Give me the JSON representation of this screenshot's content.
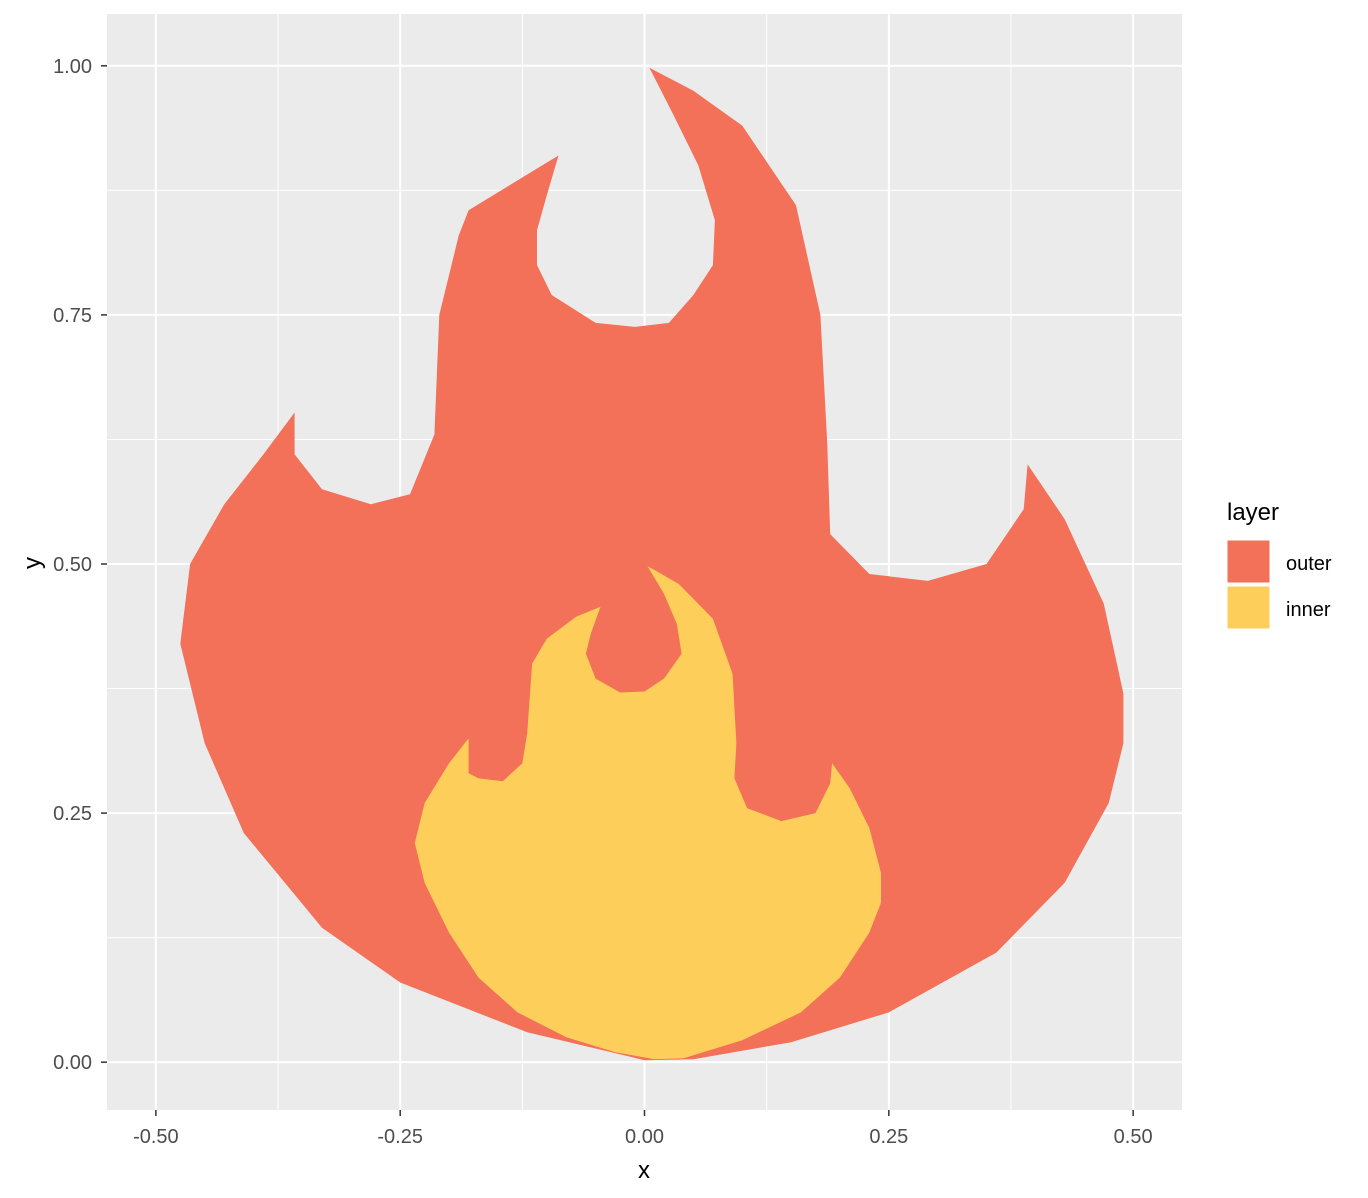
{
  "chart_data": {
    "type": "area",
    "xlabel": "x",
    "ylabel": "y",
    "xlim": [
      -0.55,
      0.55
    ],
    "ylim": [
      -0.048,
      1.052
    ],
    "x_ticks": [
      "-0.50",
      "-0.25",
      "0.00",
      "0.25",
      "0.50"
    ],
    "y_ticks": [
      "0.00",
      "0.25",
      "0.50",
      "0.75",
      "1.00"
    ],
    "grid": true,
    "legend": {
      "title": "layer",
      "placement": "right",
      "entries": [
        "outer",
        "inner"
      ]
    },
    "series": [
      {
        "name": "outer",
        "color": "#F37059",
        "points": [
          [
            0.005,
            0.998
          ],
          [
            0.05,
            0.975
          ],
          [
            0.1,
            0.94
          ],
          [
            0.155,
            0.86
          ],
          [
            0.18,
            0.75
          ],
          [
            0.187,
            0.62
          ],
          [
            0.19,
            0.53
          ],
          [
            0.23,
            0.49
          ],
          [
            0.29,
            0.483
          ],
          [
            0.35,
            0.5
          ],
          [
            0.388,
            0.555
          ],
          [
            0.392,
            0.6
          ],
          [
            0.43,
            0.545
          ],
          [
            0.47,
            0.46
          ],
          [
            0.49,
            0.37
          ],
          [
            0.49,
            0.32
          ],
          [
            0.475,
            0.26
          ],
          [
            0.43,
            0.18
          ],
          [
            0.36,
            0.11
          ],
          [
            0.25,
            0.05
          ],
          [
            0.15,
            0.02
          ],
          [
            0.05,
            0.003
          ],
          [
            0.0,
            0.002
          ],
          [
            -0.12,
            0.03
          ],
          [
            -0.25,
            0.08
          ],
          [
            -0.33,
            0.135
          ],
          [
            -0.41,
            0.23
          ],
          [
            -0.45,
            0.32
          ],
          [
            -0.475,
            0.42
          ],
          [
            -0.465,
            0.5
          ],
          [
            -0.43,
            0.56
          ],
          [
            -0.39,
            0.61
          ],
          [
            -0.358,
            0.652
          ],
          [
            -0.358,
            0.61
          ],
          [
            -0.33,
            0.575
          ],
          [
            -0.28,
            0.56
          ],
          [
            -0.24,
            0.57
          ],
          [
            -0.215,
            0.63
          ],
          [
            -0.21,
            0.75
          ],
          [
            -0.19,
            0.83
          ],
          [
            -0.18,
            0.855
          ],
          [
            -0.13,
            0.885
          ],
          [
            -0.088,
            0.91
          ],
          [
            -0.1,
            0.87
          ],
          [
            -0.11,
            0.835
          ],
          [
            -0.11,
            0.8
          ],
          [
            -0.095,
            0.77
          ],
          [
            -0.05,
            0.742
          ],
          [
            -0.01,
            0.738
          ],
          [
            0.025,
            0.742
          ],
          [
            0.05,
            0.77
          ],
          [
            0.07,
            0.8
          ],
          [
            0.072,
            0.845
          ],
          [
            0.055,
            0.9
          ],
          [
            0.03,
            0.95
          ]
        ]
      },
      {
        "name": "inner",
        "color": "#FECE5B",
        "points": [
          [
            0.003,
            0.498
          ],
          [
            0.035,
            0.48
          ],
          [
            0.07,
            0.445
          ],
          [
            0.09,
            0.39
          ],
          [
            0.094,
            0.32
          ],
          [
            0.092,
            0.285
          ],
          [
            0.105,
            0.255
          ],
          [
            0.14,
            0.242
          ],
          [
            0.175,
            0.25
          ],
          [
            0.19,
            0.28
          ],
          [
            0.192,
            0.3
          ],
          [
            0.21,
            0.275
          ],
          [
            0.23,
            0.235
          ],
          [
            0.242,
            0.19
          ],
          [
            0.242,
            0.16
          ],
          [
            0.23,
            0.13
          ],
          [
            0.2,
            0.085
          ],
          [
            0.16,
            0.05
          ],
          [
            0.1,
            0.022
          ],
          [
            0.04,
            0.004
          ],
          [
            0.01,
            0.003
          ],
          [
            -0.03,
            0.01
          ],
          [
            -0.08,
            0.025
          ],
          [
            -0.13,
            0.05
          ],
          [
            -0.17,
            0.085
          ],
          [
            -0.2,
            0.13
          ],
          [
            -0.225,
            0.18
          ],
          [
            -0.235,
            0.22
          ],
          [
            -0.225,
            0.26
          ],
          [
            -0.2,
            0.3
          ],
          [
            -0.18,
            0.325
          ],
          [
            -0.18,
            0.29
          ],
          [
            -0.17,
            0.285
          ],
          [
            -0.145,
            0.282
          ],
          [
            -0.125,
            0.3
          ],
          [
            -0.12,
            0.33
          ],
          [
            -0.115,
            0.4
          ],
          [
            -0.1,
            0.425
          ],
          [
            -0.07,
            0.447
          ],
          [
            -0.045,
            0.457
          ],
          [
            -0.055,
            0.43
          ],
          [
            -0.06,
            0.41
          ],
          [
            -0.05,
            0.385
          ],
          [
            -0.025,
            0.371
          ],
          [
            0.0,
            0.372
          ],
          [
            0.02,
            0.385
          ],
          [
            0.038,
            0.41
          ],
          [
            0.033,
            0.44
          ],
          [
            0.02,
            0.47
          ]
        ]
      }
    ]
  }
}
